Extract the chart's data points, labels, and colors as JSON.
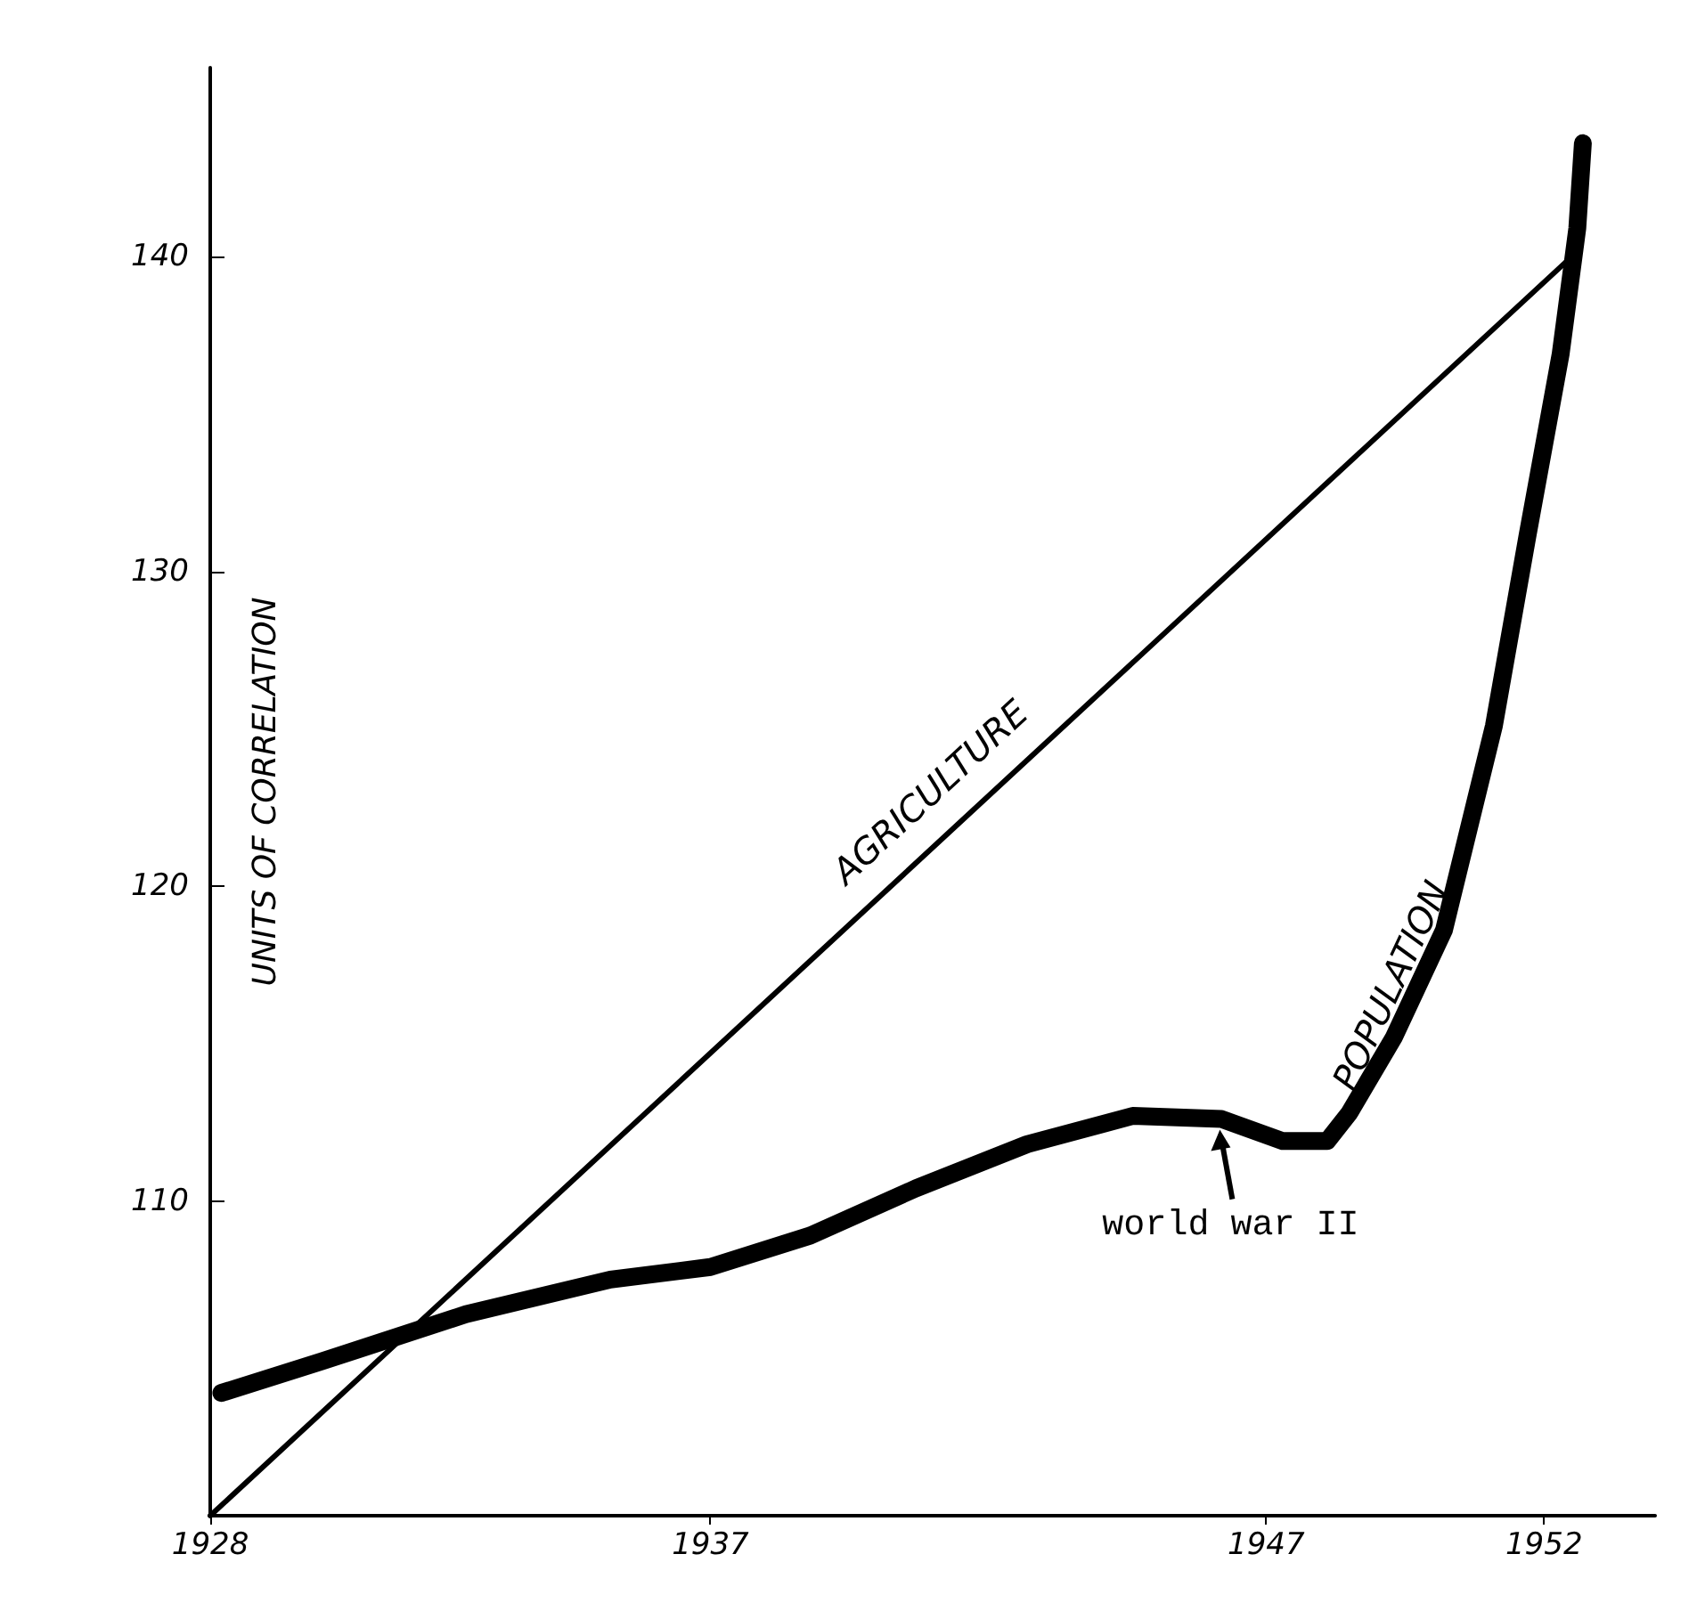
{
  "chart_data": {
    "type": "line",
    "ylabel": "UNITS OF CORRELATION",
    "xlim": [
      1928,
      1954
    ],
    "xticks": [
      1928,
      1937,
      1947,
      1952
    ],
    "ylim": [
      100,
      146
    ],
    "yticks": [
      110,
      120,
      130,
      140
    ],
    "series": [
      {
        "name": "AGRICULTURE",
        "color": "#000000",
        "x": [
          1928,
          1952.5
        ],
        "values": [
          100,
          140
        ]
      },
      {
        "name": "POPULATION",
        "color": "#000000",
        "x": [
          1928.2,
          1930,
          1932.6,
          1935.2,
          1937,
          1938.8,
          1940.7,
          1942.7,
          1944.6,
          1946.2,
          1947.3,
          1948.1,
          1948.5,
          1949.3,
          1950.2,
          1951.1,
          1951.7,
          1952.3,
          1952.6,
          1952.7
        ],
        "values": [
          103.9,
          104.9,
          106.4,
          107.5,
          107.9,
          108.9,
          110.4,
          111.8,
          112.7,
          112.6,
          111.9,
          111.9,
          112.8,
          115.2,
          118.6,
          125.1,
          131.1,
          136.9,
          140.9,
          143.6
        ]
      }
    ],
    "annotations": [
      {
        "text": "world war II",
        "x": 1946.2,
        "y": 112.6
      }
    ],
    "grid": false,
    "legend": false,
    "marker": "none",
    "line_style": "solid"
  }
}
